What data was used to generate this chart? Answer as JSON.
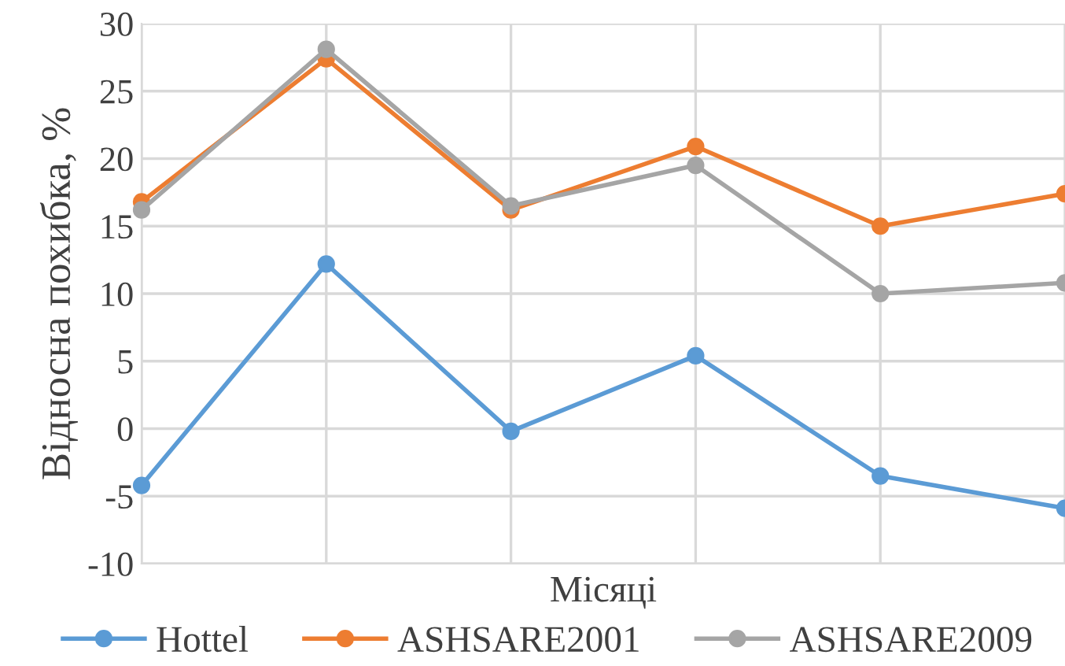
{
  "chart_data": {
    "type": "line",
    "xlabel": "Місяці",
    "ylabel": "Відносна похибка, %",
    "categories": [
      null,
      null,
      null,
      null,
      null,
      null
    ],
    "series": [
      {
        "name": "Hottel",
        "color": "#5b9bd5",
        "values": [
          -4.2,
          12.2,
          -0.2,
          5.4,
          -3.5,
          -5.9
        ]
      },
      {
        "name": "ASHSARE2001",
        "color": "#ed7d31",
        "values": [
          16.8,
          27.4,
          16.2,
          20.9,
          15.0,
          17.4
        ]
      },
      {
        "name": "ASHSARE2009",
        "color": "#a5a5a5",
        "values": [
          16.2,
          28.1,
          16.5,
          19.5,
          10.0,
          10.8
        ]
      }
    ],
    "ylim": [
      -10,
      30
    ],
    "yticks": [
      -10,
      -5,
      0,
      5,
      10,
      15,
      20,
      25,
      30
    ],
    "grid": true,
    "legend": "bottom",
    "marker": "circle",
    "line_style": "solid"
  }
}
